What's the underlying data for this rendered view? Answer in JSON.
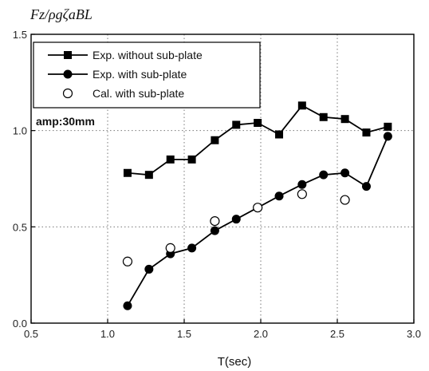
{
  "chart_data": {
    "type": "line",
    "ylabel": "Fz/ρgζaBL",
    "xlabel": "T(sec)",
    "xlim": [
      0.5,
      3.0
    ],
    "ylim": [
      0.0,
      1.5
    ],
    "xticks": [
      "0.5",
      "1.0",
      "1.5",
      "2.0",
      "2.5",
      "3.0"
    ],
    "yticks": [
      "0.0",
      "0.5",
      "1.0",
      "1.5"
    ],
    "grid": true,
    "legend_position": "top-left",
    "annotation": "amp:30mm",
    "series": [
      {
        "name": "Exp. without sub-plate",
        "marker": "filled-square",
        "line": true,
        "x": [
          1.13,
          1.27,
          1.41,
          1.55,
          1.7,
          1.84,
          1.98,
          2.12,
          2.27,
          2.41,
          2.55,
          2.69,
          2.83
        ],
        "y": [
          0.78,
          0.77,
          0.85,
          0.85,
          0.95,
          1.03,
          1.04,
          0.98,
          1.13,
          1.07,
          1.06,
          0.99,
          1.02
        ]
      },
      {
        "name": "Exp. with sub-plate",
        "marker": "filled-circle",
        "line": true,
        "x": [
          1.13,
          1.27,
          1.41,
          1.55,
          1.7,
          1.84,
          1.98,
          2.12,
          2.27,
          2.41,
          2.55,
          2.69,
          2.83
        ],
        "y": [
          0.09,
          0.28,
          0.36,
          0.39,
          0.48,
          0.54,
          0.6,
          0.66,
          0.72,
          0.77,
          0.78,
          0.71,
          0.97
        ]
      },
      {
        "name": "Cal. with sub-plate",
        "marker": "open-circle",
        "line": false,
        "x": [
          1.13,
          1.41,
          1.7,
          1.98,
          2.27,
          2.55
        ],
        "y": [
          0.32,
          0.39,
          0.53,
          0.6,
          0.67,
          0.64
        ]
      }
    ]
  }
}
